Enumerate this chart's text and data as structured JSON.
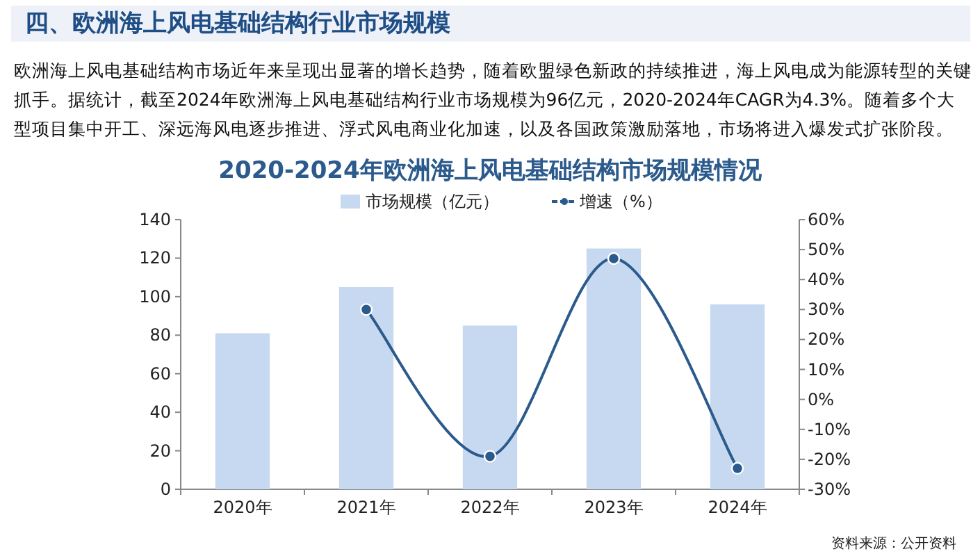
{
  "chart_data": {
    "type": "bar",
    "title": "2020-2024年欧洲海上风电基础结构市场规模情况",
    "subtitle": "四、欧洲海上风电基础结构行业市场规模",
    "annotations": [
      "欧洲海上风电基础结构市场近年来呈现出显著的增长趋势，随着欧盟绿色新政的持续推进，海上风电成为能源转型的关键抓手。据统计，截至2024年欧洲海上风电基础结构行业市场规模为96亿元，2020-2024年CAGR为4.3%。随着多个大型项目集中开工、深远海风电逐步推进、浮式风电商业化加速，以及各国政策激励落地，市场将进入爆发式扩张阶段。",
      "资料来源：公开资料"
    ],
    "categories": [
      "2020年",
      "2021年",
      "2022年",
      "2023年",
      "2024年"
    ],
    "series": [
      {
        "name": "市场规模（亿元）",
        "color": "#c6d9f0",
        "values": [
          81,
          105,
          85,
          125,
          96
        ]
      },
      {
        "name": "增速（%）",
        "type": "line",
        "color": "#2b5a8c",
        "axis": "y2",
        "marker": "circle",
        "values": [
          null,
          30,
          -19,
          47,
          -23
        ]
      }
    ],
    "ylim": [
      0,
      140
    ],
    "yticks": [
      0,
      20,
      40,
      60,
      80,
      100,
      120,
      140
    ],
    "y2lim": [
      -30,
      60
    ],
    "y2ticks": [
      {
        "value": -30,
        "label": "-30%"
      },
      {
        "value": -20,
        "label": "-20%"
      },
      {
        "value": -10,
        "label": "-10%"
      },
      {
        "value": 0,
        "label": "0%"
      },
      {
        "value": 10,
        "label": "10%"
      },
      {
        "value": 20,
        "label": "20%"
      },
      {
        "value": 30,
        "label": "30%"
      },
      {
        "value": 40,
        "label": "40%"
      },
      {
        "value": 50,
        "label": "50%"
      },
      {
        "value": 60,
        "label": "60%"
      }
    ],
    "legend": "top"
  }
}
